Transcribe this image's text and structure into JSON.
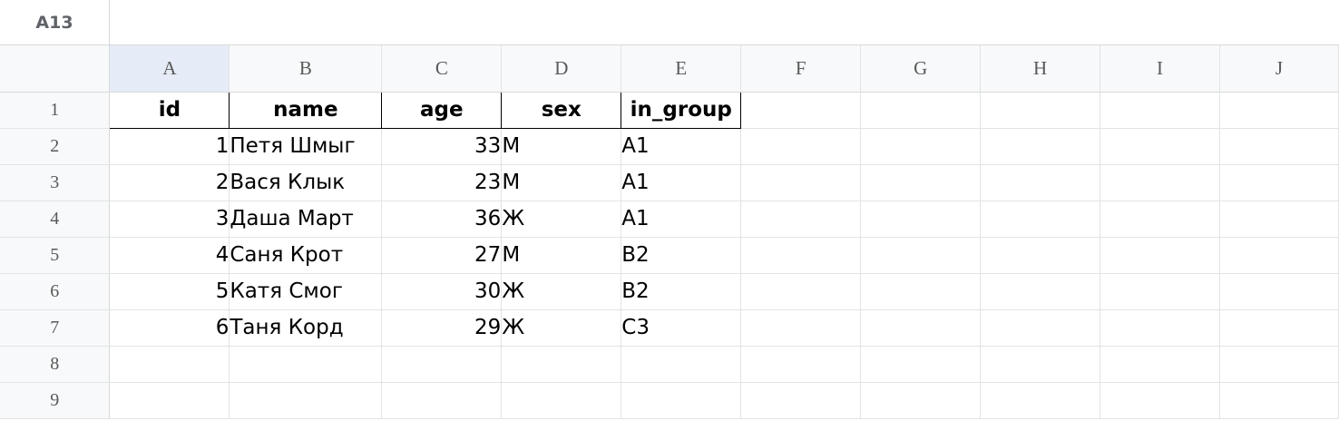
{
  "name_box": "A13",
  "columns": [
    "A",
    "B",
    "C",
    "D",
    "E",
    "F",
    "G",
    "H",
    "I",
    "J"
  ],
  "rows": [
    "1",
    "2",
    "3",
    "4",
    "5",
    "6",
    "7",
    "8",
    "9"
  ],
  "table": {
    "headers": [
      "id",
      "name",
      "age",
      "sex",
      "in_group"
    ],
    "records": [
      [
        "1",
        "Петя Шмыг",
        "33",
        "М",
        "A1"
      ],
      [
        "2",
        "Вася Клык",
        "23",
        "М",
        "A1"
      ],
      [
        "3",
        "Даша Март",
        "36",
        "Ж",
        "A1"
      ],
      [
        "4",
        "Саня Крот",
        "27",
        "М",
        "B2"
      ],
      [
        "5",
        "Катя Смог",
        "30",
        "Ж",
        "B2"
      ],
      [
        "6",
        "Таня Корд",
        "29",
        "Ж",
        "C3"
      ]
    ]
  }
}
